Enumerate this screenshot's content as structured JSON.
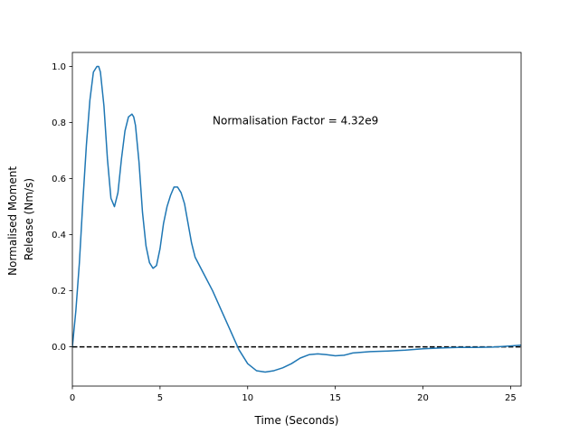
{
  "colors": {
    "series": "#1f77b4",
    "zero_line": "#000000",
    "axes": "#000000"
  },
  "chart_data": {
    "type": "line",
    "xlabel": "Time (Seconds)",
    "ylabel_lines": [
      "Normalised Moment",
      "Release (Nm/s)"
    ],
    "xlim": [
      0,
      25.6
    ],
    "ylim": [
      -0.14,
      1.05
    ],
    "xticks": [
      0,
      5,
      10,
      15,
      20,
      25
    ],
    "yticks": [
      0.0,
      0.2,
      0.4,
      0.6,
      0.8,
      1.0
    ],
    "xtick_labels": [
      "0",
      "5",
      "10",
      "15",
      "20",
      "25"
    ],
    "ytick_labels": [
      "0.0",
      "0.2",
      "0.4",
      "0.6",
      "0.8",
      "1.0"
    ],
    "annotation": {
      "text": "Normalisation Factor = 4.32e9",
      "x": 8.0,
      "y": 0.81
    },
    "reference_line": {
      "y": 0.0,
      "style": "dashed"
    },
    "grid": false,
    "series": [
      {
        "x": [
          0,
          0.2,
          0.4,
          0.6,
          0.8,
          1.0,
          1.2,
          1.4,
          1.5,
          1.6,
          1.8,
          2.0,
          2.2,
          2.4,
          2.6,
          2.8,
          3.0,
          3.2,
          3.4,
          3.5,
          3.6,
          3.8,
          4.0,
          4.2,
          4.4,
          4.6,
          4.8,
          5.0,
          5.2,
          5.4,
          5.6,
          5.8,
          6.0,
          6.2,
          6.4,
          6.6,
          6.8,
          7.0,
          7.5,
          8.0,
          8.5,
          9.0,
          9.5,
          10.0,
          10.5,
          11.0,
          11.5,
          12.0,
          12.5,
          13.0,
          13.5,
          14.0,
          14.5,
          15.0,
          15.5,
          16.0,
          17.0,
          18.0,
          19.0,
          20.0,
          21.0,
          22.0,
          23.0,
          24.0,
          25.0,
          25.6
        ],
        "y": [
          0.0,
          0.13,
          0.3,
          0.52,
          0.72,
          0.88,
          0.98,
          1.0,
          1.0,
          0.98,
          0.86,
          0.67,
          0.53,
          0.5,
          0.55,
          0.67,
          0.77,
          0.82,
          0.83,
          0.82,
          0.79,
          0.66,
          0.48,
          0.36,
          0.3,
          0.28,
          0.29,
          0.35,
          0.44,
          0.5,
          0.54,
          0.57,
          0.57,
          0.55,
          0.51,
          0.44,
          0.37,
          0.32,
          0.26,
          0.2,
          0.13,
          0.06,
          -0.01,
          -0.06,
          -0.085,
          -0.09,
          -0.085,
          -0.075,
          -0.06,
          -0.04,
          -0.028,
          -0.025,
          -0.028,
          -0.032,
          -0.03,
          -0.022,
          -0.017,
          -0.015,
          -0.012,
          -0.007,
          -0.004,
          -0.002,
          -0.002,
          -0.001,
          0.003,
          0.006
        ]
      }
    ]
  }
}
